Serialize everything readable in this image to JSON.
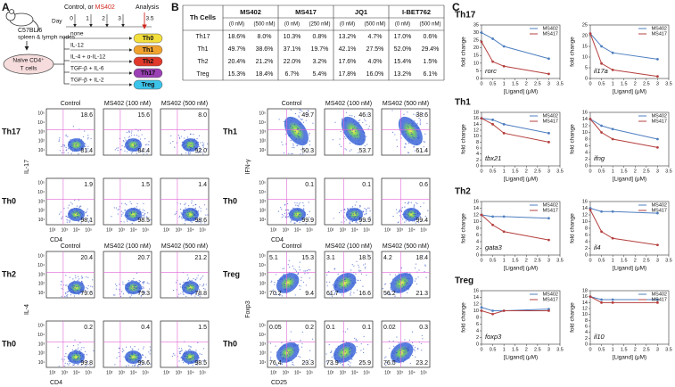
{
  "panel_labels": [
    "A",
    "B",
    "C"
  ],
  "panel_a": {
    "mouse": "C57BL/6",
    "source": "spleen & lymph nodes",
    "cells": [
      "Naïve CD4⁺",
      "T cells"
    ],
    "treatment_prefix": "Control, or ",
    "treatment_drug": "MS402",
    "analysis": "Analysis",
    "day_label": "Day",
    "days": [
      0,
      1,
      2,
      3
    ],
    "analysis_day": 3.5,
    "conditions": [
      {
        "cytokines": "none",
        "subset": "Th0",
        "color": "#f3df3c"
      },
      {
        "cytokines": "IL-12",
        "subset": "Th1",
        "color": "#f0a22e"
      },
      {
        "cytokines": "IL-4 + α-IL-12",
        "subset": "Th2",
        "color": "#e0382a"
      },
      {
        "cytokines": "TGF-β + IL-6",
        "subset": "Th17",
        "color": "#9b3fb5"
      },
      {
        "cytokines": "TGF-β + IL-2",
        "subset": "Treg",
        "color": "#3cc3ea"
      }
    ]
  },
  "table": {
    "header": [
      "Th Cells",
      "MS402",
      "MS417",
      "JQ1",
      "I-BET762"
    ],
    "subheader": [
      "(0 nM)",
      "(500 nM)",
      "(0 nM)",
      "(250 nM)",
      "(0 nM)",
      "(500 nM)",
      "(0 nM)",
      "(500 nM)"
    ],
    "rows": [
      [
        "Th17",
        "18.6%",
        "8.0%",
        "10.3%",
        "0.8%",
        "13.2%",
        "4.7%",
        "17.0%",
        "0.6%"
      ],
      [
        "Th1",
        "49.7%",
        "38.6%",
        "37.1%",
        "19.7%",
        "42.1%",
        "27.5%",
        "52.0%",
        "29.4%"
      ],
      [
        "Th2",
        "20.4%",
        "21.2%",
        "22.0%",
        "3.2%",
        "17.6%",
        "4.0%",
        "15.4%",
        "1.5%"
      ],
      [
        "Treg",
        "15.3%",
        "18.4%",
        "6.7%",
        "5.4%",
        "17.8%",
        "16.0%",
        "13.2%",
        "6.1%"
      ]
    ]
  },
  "flow": {
    "column_titles": [
      "Control",
      "MS402 (100 nM)",
      "MS402 (500 nM)"
    ],
    "tick_labels": [
      "10¹",
      "10²",
      "10³",
      "10⁴",
      "10⁵"
    ],
    "blocks": [
      {
        "groups": [
          {
            "y_label": "IL-17",
            "x_label": "CD4",
            "rows": [
              {
                "label": "Th17",
                "color": "#d0281e",
                "plots": [
                  {
                    "ur": "18.6",
                    "lr": "81.4"
                  },
                  {
                    "ur": "15.6",
                    "lr": "84.4"
                  },
                  {
                    "ur": "8.0",
                    "lr": "92.0"
                  }
                ]
              },
              {
                "label": "Th0",
                "plots": [
                  {
                    "ur": "1.9",
                    "lr": "98.1"
                  },
                  {
                    "ur": "1.5",
                    "lr": "98.5"
                  },
                  {
                    "ur": "1.4",
                    "lr": "98.6"
                  }
                ]
              }
            ]
          },
          {
            "y_label": "IL-4",
            "x_label": "CD4",
            "rows": [
              {
                "label": "Th2",
                "plots": [
                  {
                    "ur": "20.4",
                    "lr": "79.6"
                  },
                  {
                    "ur": "20.7",
                    "lr": "79.3"
                  },
                  {
                    "ur": "21.2",
                    "lr": "78.8"
                  }
                ]
              },
              {
                "label": "Th0",
                "plots": [
                  {
                    "ur": "0.2",
                    "lr": "99.8"
                  },
                  {
                    "ur": "0.4",
                    "lr": "99.6"
                  },
                  {
                    "ur": "1.5",
                    "lr": "98.5"
                  }
                ]
              }
            ]
          }
        ]
      },
      {
        "groups": [
          {
            "y_label": "IFN-γ",
            "x_label": "CD4",
            "rows": [
              {
                "label": "Th1",
                "plots": [
                  {
                    "ur": "49.7",
                    "lr": "50.3"
                  },
                  {
                    "ur": "46.3",
                    "lr": "53.7"
                  },
                  {
                    "ur": "38.6",
                    "lr": "61.4"
                  }
                ]
              },
              {
                "label": "Th0",
                "plots": [
                  {
                    "ur": "0.1",
                    "lr": "99.9"
                  },
                  {
                    "ur": "0.1",
                    "lr": "99.9"
                  },
                  {
                    "ur": "0.6",
                    "lr": "99.4"
                  }
                ]
              }
            ]
          },
          {
            "y_label": "Foxp3",
            "x_label": "CD25",
            "rows": [
              {
                "label": "Treg",
                "plots": [
                  {
                    "ul": "5.1",
                    "ur": "15.3",
                    "ll": "70.2",
                    "lr": "9.4"
                  },
                  {
                    "ul": "3.1",
                    "ur": "18.5",
                    "ll": "61.7",
                    "lr": "16.6"
                  },
                  {
                    "ul": "4.2",
                    "ur": "18.4",
                    "ll": "56.2",
                    "lr": "21.3"
                  }
                ]
              },
              {
                "label": "Th0",
                "plots": [
                  {
                    "ul": "0.05",
                    "ur": "0.2",
                    "ll": "76.4",
                    "lr": "23.3"
                  },
                  {
                    "ul": "0.1",
                    "ur": "0.1",
                    "ll": "73.9",
                    "lr": "25.9"
                  },
                  {
                    "ul": "0.02",
                    "ur": "0.3",
                    "ll": "76.5",
                    "lr": "23.2"
                  }
                ]
              }
            ]
          }
        ]
      }
    ]
  },
  "chart_data": [
    {
      "type": "line",
      "title": "Th17",
      "annotation": "rorc",
      "xlabel": "[Ligand] (μM)",
      "ylabel": "fold change",
      "x": [
        0,
        0.5,
        1,
        3
      ],
      "xlim": [
        0,
        3.5
      ],
      "xticks": [
        0,
        0.5,
        1,
        1.5,
        2,
        2.5,
        3,
        3.5
      ],
      "ylim": [
        0,
        35
      ],
      "yticks": [
        0,
        5,
        10,
        15,
        20,
        25,
        30,
        35
      ],
      "series": [
        {
          "name": "MS402",
          "color": "#4f7fc0",
          "values": [
            30,
            26,
            21,
            13
          ]
        },
        {
          "name": "MS417",
          "color": "#b5403f",
          "values": [
            24,
            11,
            8,
            3
          ]
        }
      ]
    },
    {
      "type": "line",
      "annotation": "il17a",
      "xlabel": "[Ligand] (μM)",
      "ylabel": "fold change",
      "x": [
        0,
        0.5,
        1,
        3
      ],
      "xlim": [
        0,
        3.5
      ],
      "xticks": [
        0,
        0.5,
        1,
        1.5,
        2,
        2.5,
        3,
        3.5
      ],
      "ylim": [
        0,
        25
      ],
      "yticks": [
        0,
        5,
        10,
        15,
        20,
        25
      ],
      "series": [
        {
          "name": "MS402",
          "color": "#4f7fc0",
          "values": [
            21,
            15,
            12,
            9
          ]
        },
        {
          "name": "MS417",
          "color": "#b5403f",
          "values": [
            21,
            7,
            4,
            1
          ]
        }
      ]
    },
    {
      "type": "line",
      "title": "Th1",
      "annotation": "tbx21",
      "xlabel": "[Ligand] (μM)",
      "ylabel": "fold change",
      "x": [
        0,
        0.5,
        1,
        3
      ],
      "xlim": [
        0,
        3.5
      ],
      "xticks": [
        0,
        0.5,
        1,
        1.5,
        2,
        2.5,
        3,
        3.5
      ],
      "ylim": [
        0,
        18
      ],
      "yticks": [
        0,
        2,
        4,
        6,
        8,
        10,
        12,
        14,
        16,
        18
      ],
      "series": [
        {
          "name": "MS402",
          "color": "#4f7fc0",
          "values": [
            16,
            15.5,
            14,
            11
          ]
        },
        {
          "name": "MS417",
          "color": "#b5403f",
          "values": [
            16,
            14,
            11,
            8
          ]
        }
      ]
    },
    {
      "type": "line",
      "annotation": "ifng",
      "xlabel": "[Ligand] (μM)",
      "ylabel": "fold change",
      "x": [
        0,
        0.5,
        1,
        3
      ],
      "xlim": [
        0,
        3.5
      ],
      "xticks": [
        0,
        0.5,
        1,
        1.5,
        2,
        2.5,
        3,
        3.5
      ],
      "ylim": [
        0,
        16
      ],
      "yticks": [
        0,
        2,
        4,
        6,
        8,
        10,
        12,
        14,
        16
      ],
      "series": [
        {
          "name": "MS402",
          "color": "#4f7fc0",
          "values": [
            14,
            12,
            11,
            8
          ]
        },
        {
          "name": "MS417",
          "color": "#b5403f",
          "values": [
            14,
            10,
            8,
            5.5
          ]
        }
      ]
    },
    {
      "type": "line",
      "title": "Th2",
      "annotation": "gata3",
      "xlabel": "[Ligand] (μM)",
      "ylabel": "fold change",
      "x": [
        0,
        0.5,
        1,
        3
      ],
      "xlim": [
        0,
        3.5
      ],
      "xticks": [
        0,
        0.5,
        1,
        1.5,
        2,
        2.5,
        3,
        3.5
      ],
      "ylim": [
        0,
        16
      ],
      "yticks": [
        0,
        2,
        4,
        6,
        8,
        10,
        12,
        14,
        16
      ],
      "series": [
        {
          "name": "MS402",
          "color": "#4f7fc0",
          "values": [
            12,
            11.5,
            11.5,
            11
          ]
        },
        {
          "name": "MS417",
          "color": "#b5403f",
          "values": [
            12,
            9,
            7,
            4.5
          ]
        }
      ]
    },
    {
      "type": "line",
      "annotation": "il4",
      "xlabel": "[Ligand] (μM)",
      "ylabel": "fold change",
      "x": [
        0,
        0.5,
        1,
        3
      ],
      "xlim": [
        0,
        3.5
      ],
      "xticks": [
        0,
        0.5,
        1,
        1.5,
        2,
        2.5,
        3,
        3.5
      ],
      "ylim": [
        0,
        16
      ],
      "yticks": [
        0,
        2,
        4,
        6,
        8,
        10,
        12,
        14,
        16
      ],
      "series": [
        {
          "name": "MS402",
          "color": "#4f7fc0",
          "values": [
            14,
            13,
            13,
            12.5
          ]
        },
        {
          "name": "MS417",
          "color": "#b5403f",
          "values": [
            13.5,
            7,
            5,
            3
          ]
        }
      ]
    },
    {
      "type": "line",
      "title": "Treg",
      "annotation": "foxp3",
      "xlabel": "[Ligand] (μM)",
      "ylabel": "fold change",
      "x": [
        0,
        0.5,
        1,
        3
      ],
      "xlim": [
        0,
        3.5
      ],
      "xticks": [
        0,
        0.5,
        1,
        1.5,
        2,
        2.5,
        3,
        3.5
      ],
      "ylim": [
        0,
        16
      ],
      "yticks": [
        0,
        2,
        4,
        6,
        8,
        10,
        12,
        14,
        16
      ],
      "series": [
        {
          "name": "MS402",
          "color": "#4f7fc0",
          "values": [
            11,
            10,
            10,
            10.5
          ]
        },
        {
          "name": "MS417",
          "color": "#b5403f",
          "values": [
            10,
            9,
            10,
            10
          ]
        }
      ]
    },
    {
      "type": "line",
      "annotation": "il10",
      "xlabel": "[Ligand] (μM)",
      "ylabel": "fold change",
      "x": [
        0,
        0.5,
        1,
        3
      ],
      "xlim": [
        0,
        3.5
      ],
      "xticks": [
        0,
        0.5,
        1,
        1.5,
        2,
        2.5,
        3,
        3.5
      ],
      "ylim": [
        0,
        18
      ],
      "yticks": [
        0,
        2,
        4,
        6,
        8,
        10,
        12,
        14,
        16,
        18
      ],
      "series": [
        {
          "name": "MS402",
          "color": "#4f7fc0",
          "values": [
            16,
            15,
            15,
            15
          ]
        },
        {
          "name": "MS417",
          "color": "#b5403f",
          "values": [
            16,
            14,
            14,
            14
          ]
        }
      ]
    }
  ]
}
